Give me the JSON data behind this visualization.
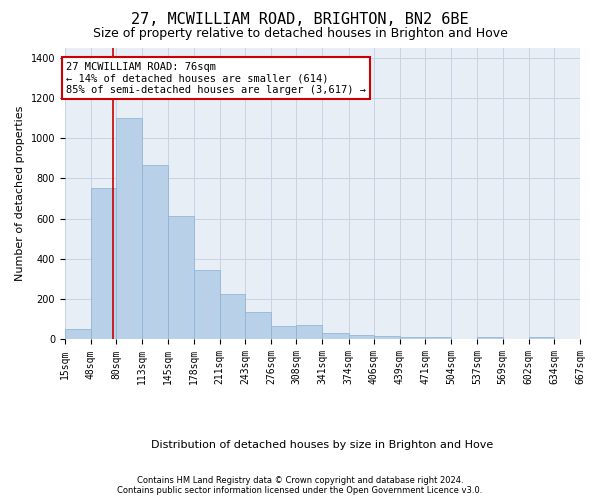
{
  "title": "27, MCWILLIAM ROAD, BRIGHTON, BN2 6BE",
  "subtitle": "Size of property relative to detached houses in Brighton and Hove",
  "xlabel": "Distribution of detached houses by size in Brighton and Hove",
  "ylabel": "Number of detached properties",
  "footer_line1": "Contains HM Land Registry data © Crown copyright and database right 2024.",
  "footer_line2": "Contains public sector information licensed under the Open Government Licence v3.0.",
  "annotation_line1": "27 MCWILLIAM ROAD: 76sqm",
  "annotation_line2": "← 14% of detached houses are smaller (614)",
  "annotation_line3": "85% of semi-detached houses are larger (3,617) →",
  "bins": [
    15,
    48,
    80,
    113,
    145,
    178,
    211,
    243,
    276,
    308,
    341,
    374,
    406,
    439,
    471,
    504,
    537,
    569,
    602,
    634,
    667
  ],
  "bar_heights": [
    50,
    750,
    1100,
    865,
    615,
    345,
    225,
    135,
    65,
    70,
    30,
    20,
    15,
    10,
    10,
    0,
    10,
    0,
    10,
    0
  ],
  "bar_color": "#b8d0e8",
  "bar_edgecolor": "#8ab0d0",
  "grid_color": "#c8d4e4",
  "bg_color": "#e8eef6",
  "red_line_x": 76,
  "ylim": [
    0,
    1450
  ],
  "annotation_box_color": "#cc0000",
  "title_fontsize": 11,
  "subtitle_fontsize": 9,
  "ylabel_fontsize": 8,
  "xlabel_fontsize": 8,
  "tick_fontsize": 7,
  "footer_fontsize": 6,
  "annotation_fontsize": 7.5
}
